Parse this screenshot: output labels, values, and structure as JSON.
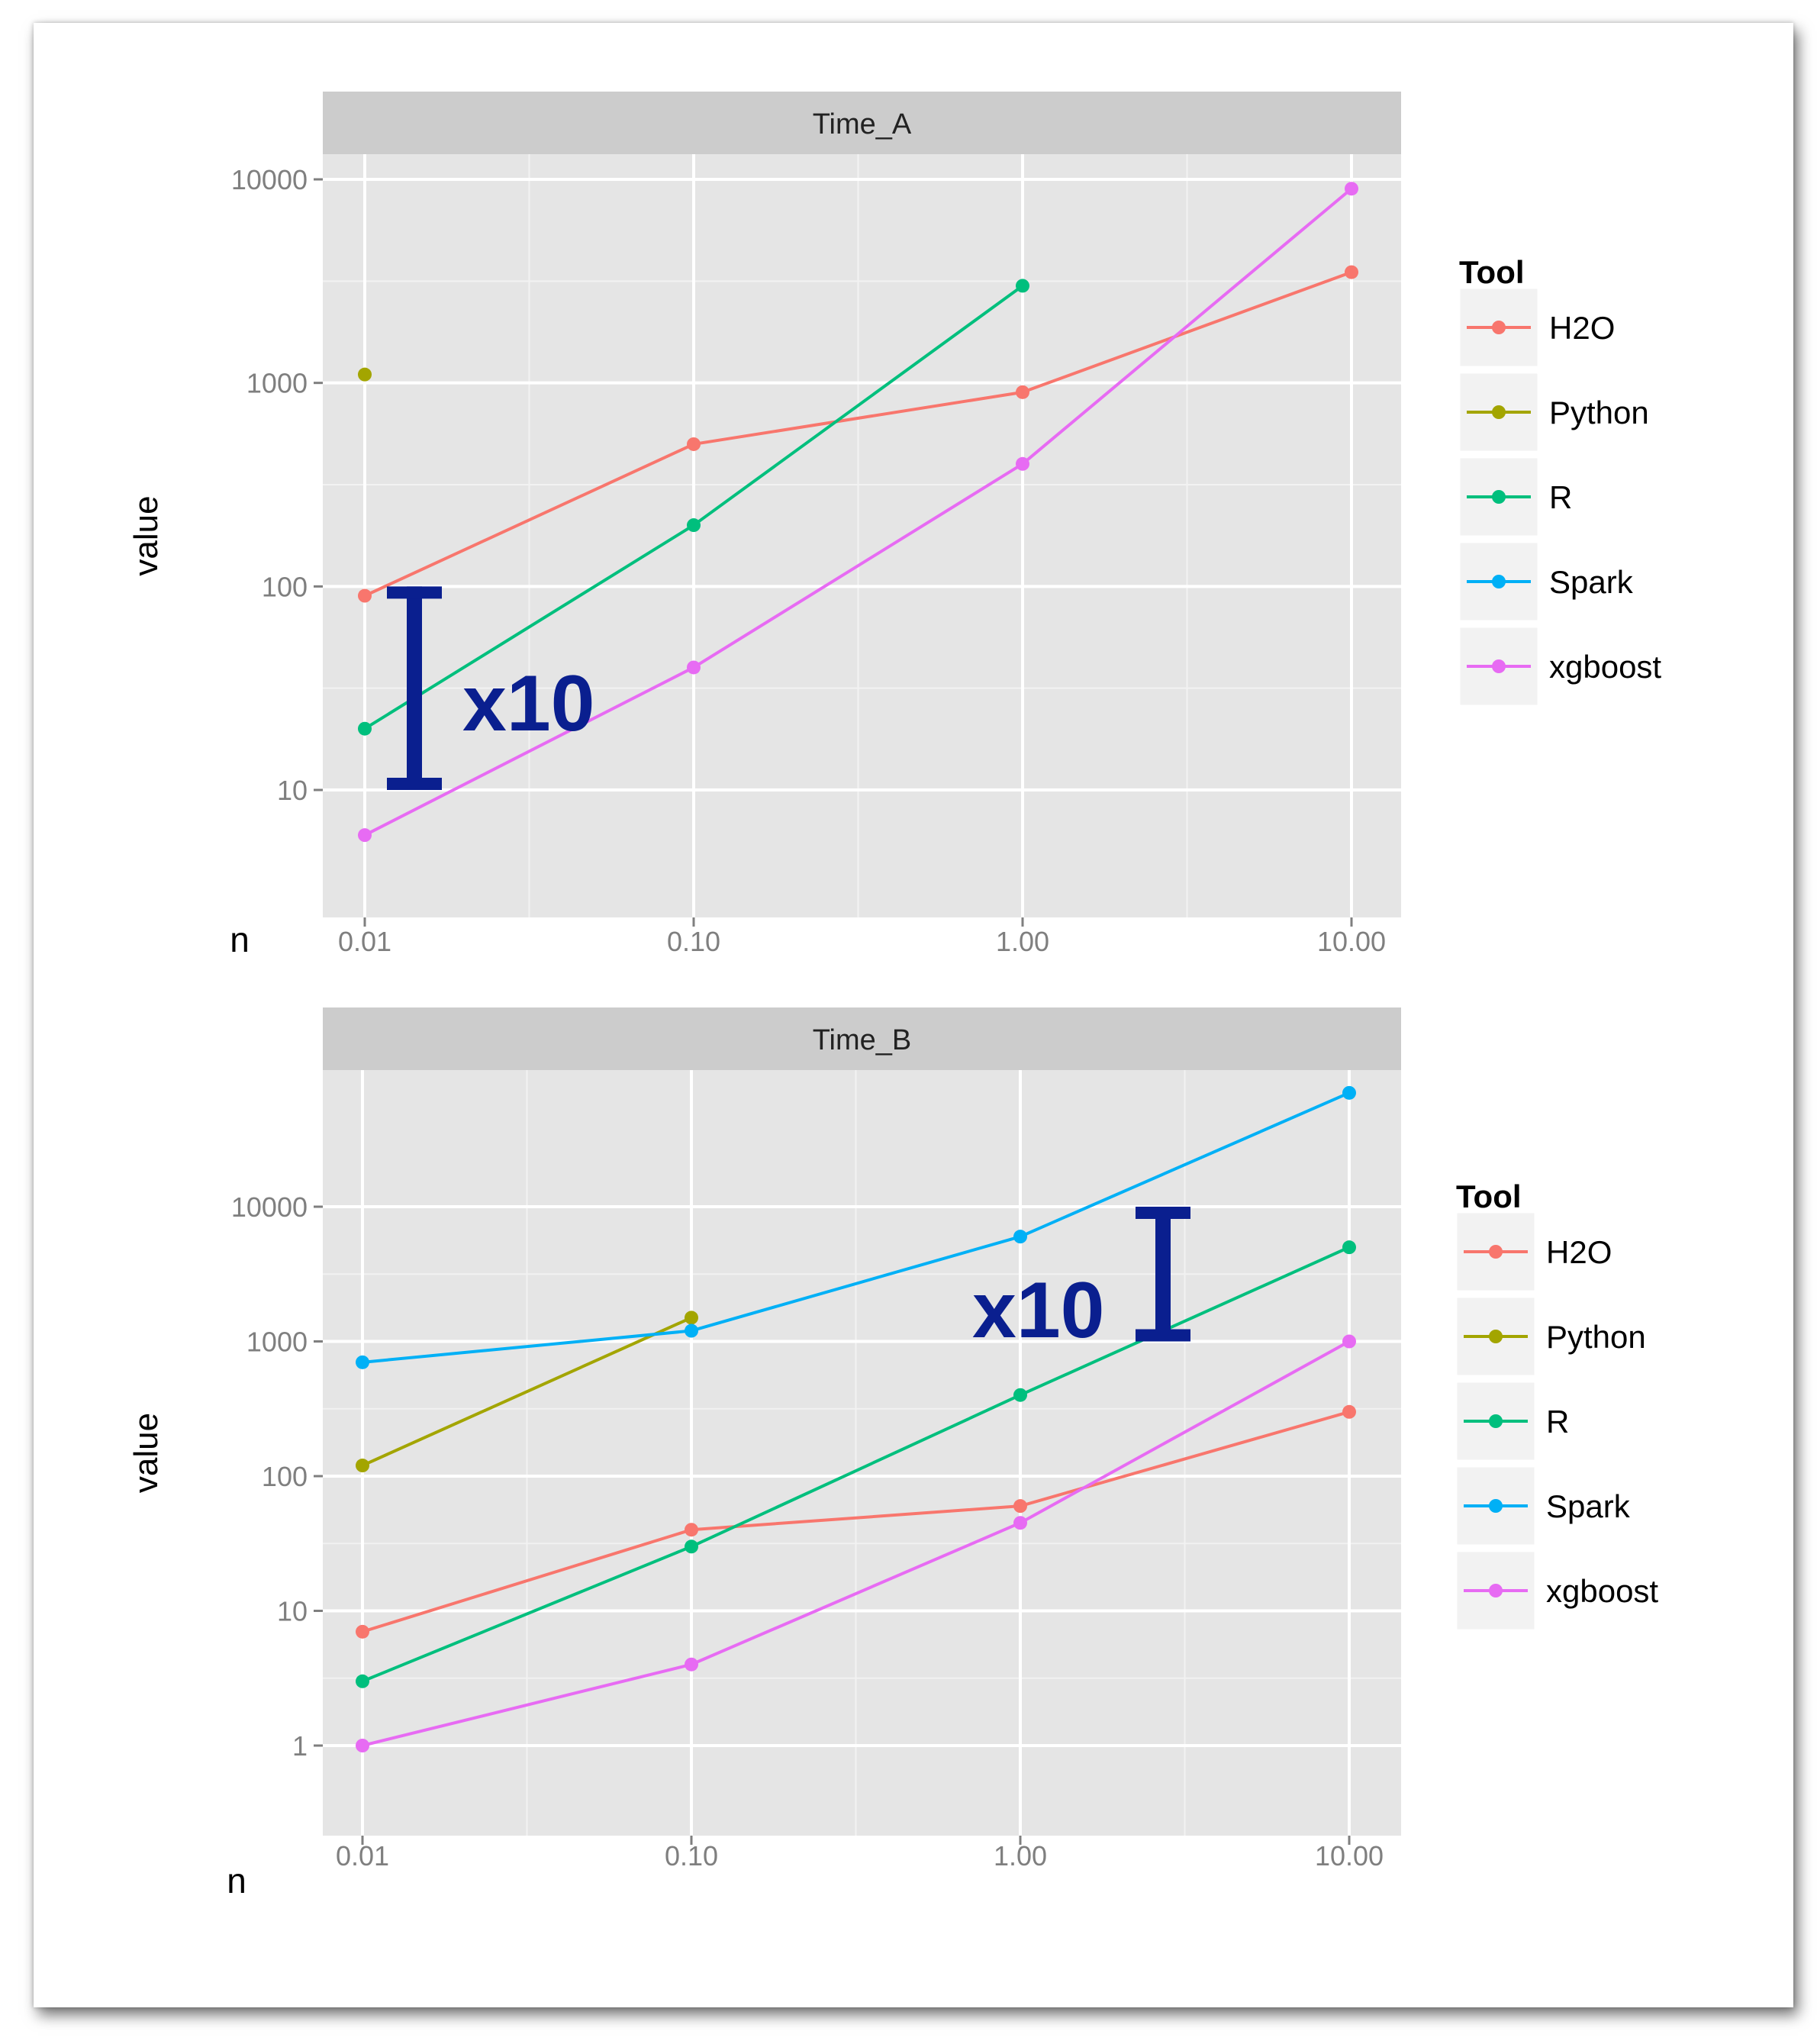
{
  "colors": {
    "H2O": "#F8766D",
    "Python": "#A3A500",
    "R": "#00BF7D",
    "Spark": "#00B0F6",
    "xgboost": "#E76BF3",
    "panel_bg": "#E5E5E5",
    "strip_bg": "#CCCCCC",
    "annotation": "#0A1F8F"
  },
  "chart_data": [
    {
      "type": "line",
      "title": "Time_A",
      "xlabel": "n",
      "ylabel": "value",
      "x_scale": "log",
      "y_scale": "log",
      "x": [
        0.01,
        0.1,
        1,
        10
      ],
      "x_tick_labels": [
        "0.01",
        "0.10",
        "1.00",
        "10.00"
      ],
      "y_ticks": [
        10,
        100,
        1000,
        10000
      ],
      "y_tick_labels": [
        "10",
        "100",
        "1000",
        "10000"
      ],
      "ylim": [
        4.5,
        20000
      ],
      "grid": true,
      "legend": {
        "title": "Tool",
        "position": "right",
        "entries": [
          "H2O",
          "Python",
          "R",
          "Spark",
          "xgboost"
        ]
      },
      "series": [
        {
          "name": "H2O",
          "values": [
            90,
            500,
            900,
            3500
          ]
        },
        {
          "name": "Python",
          "values": [
            1100,
            null,
            null,
            null
          ]
        },
        {
          "name": "R",
          "values": [
            20,
            200,
            3000,
            null
          ]
        },
        {
          "name": "Spark",
          "values": [
            null,
            null,
            null,
            null
          ]
        },
        {
          "name": "xgboost",
          "values": [
            6,
            40,
            400,
            9000
          ]
        }
      ],
      "annotation": {
        "text": "x10",
        "from": 10,
        "to": 100,
        "at_x": 0.017
      }
    },
    {
      "type": "line",
      "title": "Time_B",
      "xlabel": "n",
      "ylabel": "value",
      "x_scale": "log",
      "y_scale": "log",
      "x": [
        0.01,
        0.1,
        1,
        10
      ],
      "x_tick_labels": [
        "0.01",
        "0.10",
        "1.00",
        "10.00"
      ],
      "y_ticks": [
        1,
        10,
        100,
        1000,
        10000
      ],
      "y_tick_labels": [
        "1",
        "10",
        "100",
        "1000",
        "10000"
      ],
      "ylim": [
        0.7,
        180000
      ],
      "grid": true,
      "legend": {
        "title": "Tool",
        "position": "right",
        "entries": [
          "H2O",
          "Python",
          "R",
          "Spark",
          "xgboost"
        ]
      },
      "series": [
        {
          "name": "H2O",
          "values": [
            7,
            40,
            60,
            300
          ]
        },
        {
          "name": "Python",
          "values": [
            120,
            1500,
            null,
            null
          ]
        },
        {
          "name": "R",
          "values": [
            3,
            30,
            400,
            5000
          ]
        },
        {
          "name": "Spark",
          "values": [
            700,
            1200,
            6000,
            70000
          ]
        },
        {
          "name": "xgboost",
          "values": [
            1,
            4,
            45,
            1000
          ]
        }
      ],
      "annotation": {
        "text": "x10",
        "from": 1000,
        "to": 10000,
        "at_x": 4.7
      }
    }
  ]
}
